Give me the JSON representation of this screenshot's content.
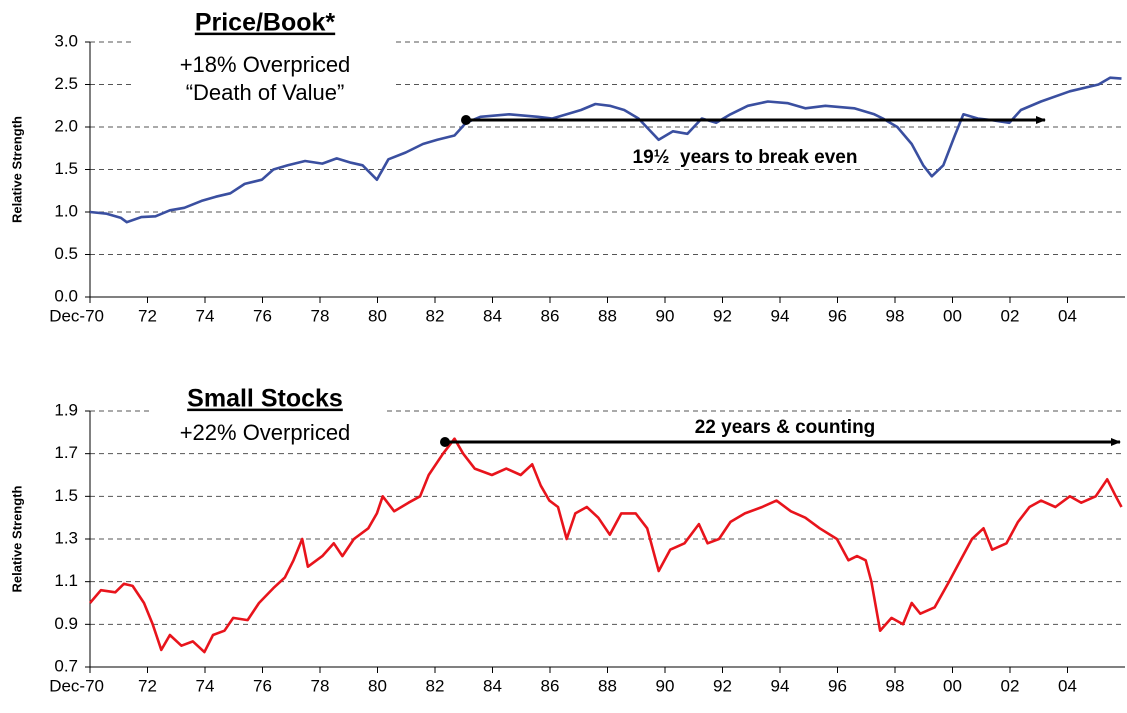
{
  "chart_data": [
    {
      "type": "line",
      "title": "Price/Book*",
      "annotations": [
        "+18% Overpriced",
        "“Death of Value”",
        "19½  years to break even"
      ],
      "y_label": "Relative Strength",
      "color": "#3a4fa0",
      "grid": true,
      "xlim": [
        1970.92,
        2006.92
      ],
      "xticks": [
        {
          "value": 1970.92,
          "label": "Dec-70"
        },
        {
          "value": 1972.92,
          "label": "72"
        },
        {
          "value": 1974.92,
          "label": "74"
        },
        {
          "value": 1976.92,
          "label": "76"
        },
        {
          "value": 1978.92,
          "label": "78"
        },
        {
          "value": 1980.92,
          "label": "80"
        },
        {
          "value": 1982.92,
          "label": "82"
        },
        {
          "value": 1984.92,
          "label": "84"
        },
        {
          "value": 1986.92,
          "label": "86"
        },
        {
          "value": 1988.92,
          "label": "88"
        },
        {
          "value": 1990.92,
          "label": "90"
        },
        {
          "value": 1992.92,
          "label": "92"
        },
        {
          "value": 1994.92,
          "label": "94"
        },
        {
          "value": 1996.92,
          "label": "96"
        },
        {
          "value": 1998.92,
          "label": "98"
        },
        {
          "value": 2000.92,
          "label": "00"
        },
        {
          "value": 2002.92,
          "label": "02"
        },
        {
          "value": 2004.92,
          "label": "04"
        }
      ],
      "ylim": [
        0,
        3
      ],
      "yticks": [
        {
          "value": 0,
          "label": "0.0"
        },
        0.5,
        {
          "value": 1,
          "label": "1.0"
        },
        1.5,
        {
          "value": 2,
          "label": "2.0"
        },
        2.5,
        {
          "value": 3,
          "label": "3.0"
        }
      ],
      "x": [
        1970.92,
        1971.5,
        1972.0,
        1972.2,
        1972.7,
        1973.2,
        1973.7,
        1974.2,
        1974.8,
        1975.3,
        1975.8,
        1976.3,
        1976.9,
        1977.3,
        1977.8,
        1978.4,
        1979.0,
        1979.5,
        1980.0,
        1980.4,
        1980.9,
        1981.3,
        1981.9,
        1982.5,
        1983.0,
        1983.6,
        1984.0,
        1984.5,
        1985.5,
        1986.5,
        1987.0,
        1987.5,
        1988.0,
        1988.5,
        1989.0,
        1989.5,
        1990.0,
        1990.7,
        1991.2,
        1991.7,
        1992.2,
        1992.7,
        1993.2,
        1993.8,
        1994.5,
        1995.2,
        1995.8,
        1996.5,
        1997.5,
        1998.2,
        1998.5,
        1999.0,
        1999.5,
        1999.9,
        2000.2,
        2000.6,
        2001.0,
        2001.3,
        2001.8,
        2002.3,
        2002.9,
        2003.3,
        2004.0,
        2005.0,
        2006.0,
        2006.4,
        2006.8
      ],
      "values": [
        1.0,
        0.98,
        0.93,
        0.88,
        0.94,
        0.95,
        1.02,
        1.05,
        1.13,
        1.18,
        1.22,
        1.33,
        1.38,
        1.5,
        1.55,
        1.6,
        1.57,
        1.63,
        1.58,
        1.55,
        1.38,
        1.62,
        1.7,
        1.8,
        1.85,
        1.9,
        2.05,
        2.12,
        2.15,
        2.12,
        2.1,
        2.15,
        2.2,
        2.27,
        2.25,
        2.2,
        2.1,
        1.85,
        1.95,
        1.92,
        2.1,
        2.05,
        2.15,
        2.25,
        2.3,
        2.28,
        2.22,
        2.25,
        2.22,
        2.15,
        2.1,
        2.0,
        1.8,
        1.55,
        1.42,
        1.55,
        1.9,
        2.15,
        2.1,
        2.08,
        2.05,
        2.2,
        2.3,
        2.42,
        2.5,
        2.58,
        2.57
      ]
    },
    {
      "type": "line",
      "title": "Small Stocks",
      "annotations": [
        "+22% Overpriced",
        "22 years & counting"
      ],
      "y_label": "Relative Strength",
      "color": "#e8141c",
      "grid": true,
      "xlim": [
        1970.92,
        2006.92
      ],
      "xticks": [
        {
          "value": 1970.92,
          "label": "Dec-70"
        },
        {
          "value": 1972.92,
          "label": "72"
        },
        {
          "value": 1974.92,
          "label": "74"
        },
        {
          "value": 1976.92,
          "label": "76"
        },
        {
          "value": 1978.92,
          "label": "78"
        },
        {
          "value": 1980.92,
          "label": "80"
        },
        {
          "value": 1982.92,
          "label": "82"
        },
        {
          "value": 1984.92,
          "label": "84"
        },
        {
          "value": 1986.92,
          "label": "86"
        },
        {
          "value": 1988.92,
          "label": "88"
        },
        {
          "value": 1990.92,
          "label": "90"
        },
        {
          "value": 1992.92,
          "label": "92"
        },
        {
          "value": 1994.92,
          "label": "94"
        },
        {
          "value": 1996.92,
          "label": "96"
        },
        {
          "value": 1998.92,
          "label": "98"
        },
        {
          "value": 2000.92,
          "label": "00"
        },
        {
          "value": 2002.92,
          "label": "02"
        },
        {
          "value": 2004.92,
          "label": "04"
        }
      ],
      "ylim": [
        0.7,
        1.9
      ],
      "yticks": [
        0.7,
        0.9,
        1.1,
        1.3,
        1.5,
        1.7,
        1.9
      ],
      "x": [
        1970.92,
        1971.3,
        1971.8,
        1972.1,
        1972.4,
        1972.8,
        1973.1,
        1973.4,
        1973.7,
        1974.1,
        1974.5,
        1974.9,
        1975.2,
        1975.6,
        1975.9,
        1976.4,
        1976.8,
        1977.3,
        1977.7,
        1978.0,
        1978.3,
        1978.5,
        1979.0,
        1979.4,
        1979.7,
        1980.1,
        1980.6,
        1980.9,
        1981.1,
        1981.5,
        1982.0,
        1982.4,
        1982.7,
        1983.2,
        1983.6,
        1983.9,
        1984.3,
        1984.9,
        1985.4,
        1985.9,
        1986.3,
        1986.6,
        1986.9,
        1987.2,
        1987.5,
        1987.8,
        1988.2,
        1988.6,
        1989.0,
        1989.4,
        1989.9,
        1990.3,
        1990.7,
        1991.1,
        1991.6,
        1992.1,
        1992.4,
        1992.8,
        1993.2,
        1993.7,
        1994.3,
        1994.8,
        1995.3,
        1995.8,
        1996.3,
        1996.9,
        1997.3,
        1997.6,
        1997.9,
        1998.1,
        1998.4,
        1998.8,
        1999.2,
        1999.5,
        1999.8,
        2000.3,
        2000.8,
        2001.2,
        2001.6,
        2002.0,
        2002.3,
        2002.8,
        2003.2,
        2003.6,
        2004.0,
        2004.5,
        2005.0,
        2005.4,
        2005.9,
        2006.3,
        2006.6,
        2006.8
      ],
      "values": [
        1.0,
        1.06,
        1.05,
        1.09,
        1.08,
        1.0,
        0.9,
        0.78,
        0.85,
        0.8,
        0.82,
        0.77,
        0.85,
        0.87,
        0.93,
        0.92,
        1.0,
        1.07,
        1.12,
        1.2,
        1.3,
        1.17,
        1.22,
        1.28,
        1.22,
        1.3,
        1.35,
        1.42,
        1.5,
        1.43,
        1.47,
        1.5,
        1.6,
        1.7,
        1.77,
        1.7,
        1.63,
        1.6,
        1.63,
        1.6,
        1.65,
        1.55,
        1.48,
        1.45,
        1.3,
        1.42,
        1.45,
        1.4,
        1.32,
        1.42,
        1.42,
        1.35,
        1.15,
        1.25,
        1.28,
        1.37,
        1.28,
        1.3,
        1.38,
        1.42,
        1.45,
        1.48,
        1.43,
        1.4,
        1.35,
        1.3,
        1.2,
        1.22,
        1.2,
        1.1,
        0.87,
        0.93,
        0.9,
        1.0,
        0.95,
        0.98,
        1.1,
        1.2,
        1.3,
        1.35,
        1.25,
        1.28,
        1.38,
        1.45,
        1.48,
        1.45,
        1.5,
        1.47,
        1.5,
        1.58,
        1.5,
        1.45
      ]
    }
  ]
}
